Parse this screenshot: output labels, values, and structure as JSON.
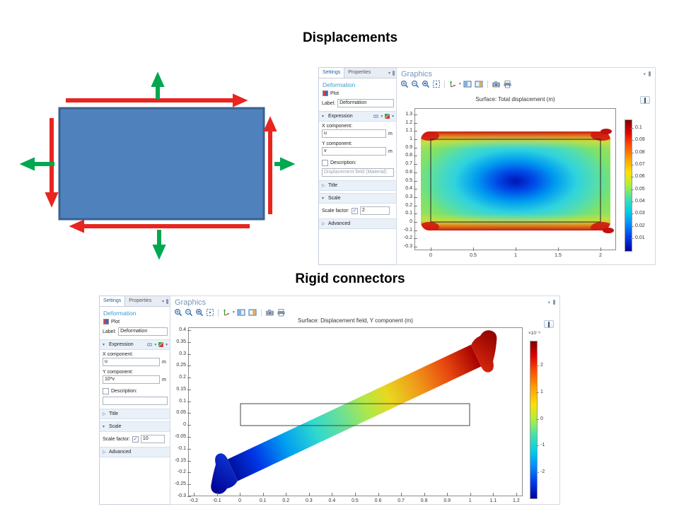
{
  "titles": {
    "top": "Displacements",
    "bottom": "Rigid connectors"
  },
  "diagram": {
    "rect_fill": "#4F81BD",
    "rect_border": "#3A618F",
    "red_arrow_color": "#E8251F",
    "green_arrow_color": "#00A850",
    "red_arrows": [
      "top-edge-right",
      "left-edge-down",
      "right-edge-up",
      "bottom-edge-left"
    ],
    "green_arrows": [
      "top-up",
      "left-out",
      "right-out",
      "bottom-down"
    ]
  },
  "settings_top": {
    "tabs": [
      "Settings",
      "Properties"
    ],
    "heading": "Deformation",
    "plot_label": "Plot",
    "label_caption": "Label:",
    "label_value": "Deformation",
    "expression_section": "Expression",
    "x_caption": "X component:",
    "x_value": "u",
    "x_unit": "m",
    "y_caption": "Y component:",
    "y_value": "v",
    "y_unit": "m",
    "description_caption": "Description:",
    "description_value": "Displacement field (Material)",
    "title_section": "Title",
    "scale_section": "Scale",
    "scale_caption": "Scale factor:",
    "scale_value": "2",
    "advanced_section": "Advanced"
  },
  "settings_bottom": {
    "tabs": [
      "Settings",
      "Properties"
    ],
    "heading": "Deformation",
    "plot_label": "Plot",
    "label_caption": "Label:",
    "label_value": "Deformation",
    "expression_section": "Expression",
    "x_caption": "X component:",
    "x_value": "u",
    "x_unit": "m",
    "y_caption": "Y component:",
    "y_value": "10*v",
    "y_unit": "m",
    "description_caption": "Description:",
    "description_value": "",
    "title_section": "Title",
    "scale_section": "Scale",
    "scale_caption": "Scale factor:",
    "scale_value": "10",
    "advanced_section": "Advanced"
  },
  "graphics_top": {
    "header": "Graphics",
    "plot_title": "Surface: Total displacement (m)",
    "xticks": [
      "0",
      "0.5",
      "1",
      "1.5",
      "2"
    ],
    "yticks": [
      "1.3",
      "1.2",
      "1.1",
      "1",
      "0.9",
      "0.8",
      "0.7",
      "0.6",
      "0.5",
      "0.4",
      "0.3",
      "0.2",
      "0.1",
      "0",
      "-0.1",
      "-0.2",
      "-0.3"
    ],
    "cbar_ticks": [
      "0.1",
      "0.09",
      "0.08",
      "0.07",
      "0.06",
      "0.05",
      "0.04",
      "0.03",
      "0.02",
      "0.01"
    ]
  },
  "graphics_bottom": {
    "header": "Graphics",
    "plot_title": "Surface: Displacement field, Y component (m)",
    "xticks": [
      "-0.2",
      "-0.1",
      "0",
      "0.1",
      "0.2",
      "0.3",
      "0.4",
      "0.5",
      "0.6",
      "0.7",
      "0.8",
      "0.9",
      "1",
      "1.1",
      "1.2"
    ],
    "yticks": [
      "0.4",
      "0.35",
      "0.3",
      "0.25",
      "0.2",
      "0.15",
      "0.1",
      "0.05",
      "0",
      "-0.05",
      "-0.1",
      "-0.15",
      "-0.2",
      "-0.25",
      "-0.3"
    ],
    "cbar_ticks": [
      "2",
      "1",
      "0",
      "-1",
      "-2"
    ],
    "cbar_exponent": "×10⁻³"
  },
  "chart_data": [
    {
      "type": "heatmap",
      "title": "Surface: Total displacement (m)",
      "xlabel": "",
      "ylabel": "",
      "xlim": [
        -0.2,
        2.2
      ],
      "ylim": [
        -0.3,
        1.3
      ],
      "xticks": [
        0,
        0.5,
        1,
        1.5,
        2
      ],
      "yticks": [
        -0.3,
        -0.2,
        -0.1,
        0,
        0.1,
        0.2,
        0.3,
        0.4,
        0.5,
        0.6,
        0.7,
        0.8,
        0.9,
        1,
        1.1,
        1.2,
        1.3
      ],
      "colormap": "jet-rainbow",
      "colorbar_range": [
        0,
        0.1
      ],
      "colorbar_ticks": [
        0.01,
        0.02,
        0.03,
        0.04,
        0.05,
        0.06,
        0.07,
        0.08,
        0.09,
        0.1
      ],
      "undeformed_outline": {
        "x": [
          0,
          2
        ],
        "y": [
          0,
          1
        ]
      },
      "deformation_scale_factor": 2,
      "description": "Deformed rectangle; minimum displacement (dark blue) at center, cyan/green body, red-orange maxima along top and bottom edges and at corners"
    },
    {
      "type": "heatmap",
      "title": "Surface: Displacement field, Y component (m)",
      "xlabel": "",
      "ylabel": "",
      "xlim": [
        -0.25,
        1.25
      ],
      "ylim": [
        -0.3,
        0.4
      ],
      "xticks": [
        -0.2,
        -0.1,
        0,
        0.1,
        0.2,
        0.3,
        0.4,
        0.5,
        0.6,
        0.7,
        0.8,
        0.9,
        1,
        1.1,
        1.2
      ],
      "yticks": [
        -0.3,
        -0.25,
        -0.2,
        -0.15,
        -0.1,
        -0.05,
        0,
        0.05,
        0.1,
        0.15,
        0.2,
        0.25,
        0.3,
        0.35,
        0.4
      ],
      "colormap": "jet-rainbow",
      "colorbar_exponent": "×10⁻³",
      "colorbar_ticks": [
        -2,
        -1,
        0,
        1,
        2
      ],
      "undeformed_outline": {
        "x": [
          0,
          1
        ],
        "y": [
          0,
          0.1
        ]
      },
      "deformation_scale_factor": 10,
      "description": "Tilted beam with rigid connector ends: blue (negative Y displacement) at lower-left end rising linearly to red (positive) at upper-right end"
    }
  ]
}
